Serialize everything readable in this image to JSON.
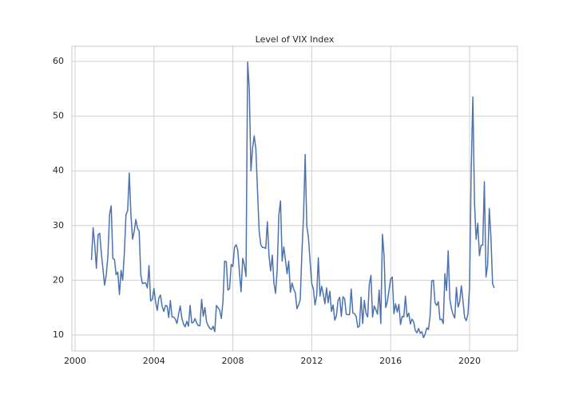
{
  "chart_data": {
    "type": "line",
    "title": "Level of VIX Index",
    "color": "#4c72b0",
    "grid": true,
    "xlim": [
      1999.84,
      2022.43
    ],
    "xticks": [
      2000,
      2004,
      2008,
      2012,
      2016,
      2020
    ],
    "ylim": [
      7.08,
      62.77
    ],
    "yticks": [
      10,
      20,
      30,
      40,
      50,
      60
    ],
    "x": [
      2000.833,
      2000.917,
      2001.0,
      2001.083,
      2001.167,
      2001.25,
      2001.333,
      2001.417,
      2001.5,
      2001.583,
      2001.667,
      2001.75,
      2001.833,
      2001.917,
      2002.0,
      2002.083,
      2002.167,
      2002.25,
      2002.333,
      2002.417,
      2002.5,
      2002.583,
      2002.667,
      2002.75,
      2002.833,
      2002.917,
      2003.0,
      2003.083,
      2003.167,
      2003.25,
      2003.333,
      2003.417,
      2003.5,
      2003.583,
      2003.667,
      2003.75,
      2003.833,
      2003.917,
      2004.0,
      2004.083,
      2004.167,
      2004.25,
      2004.333,
      2004.417,
      2004.5,
      2004.583,
      2004.667,
      2004.75,
      2004.833,
      2004.917,
      2005.0,
      2005.083,
      2005.167,
      2005.25,
      2005.333,
      2005.417,
      2005.5,
      2005.583,
      2005.667,
      2005.75,
      2005.833,
      2005.917,
      2006.0,
      2006.083,
      2006.167,
      2006.25,
      2006.333,
      2006.417,
      2006.5,
      2006.583,
      2006.667,
      2006.75,
      2006.833,
      2006.917,
      2007.0,
      2007.083,
      2007.167,
      2007.25,
      2007.333,
      2007.417,
      2007.5,
      2007.583,
      2007.667,
      2007.75,
      2007.833,
      2007.917,
      2008.0,
      2008.083,
      2008.167,
      2008.25,
      2008.333,
      2008.417,
      2008.5,
      2008.583,
      2008.667,
      2008.75,
      2008.833,
      2008.917,
      2009.0,
      2009.083,
      2009.167,
      2009.25,
      2009.333,
      2009.417,
      2009.5,
      2009.583,
      2009.667,
      2009.75,
      2009.833,
      2009.917,
      2010.0,
      2010.083,
      2010.167,
      2010.25,
      2010.333,
      2010.417,
      2010.5,
      2010.583,
      2010.667,
      2010.75,
      2010.833,
      2010.917,
      2011.0,
      2011.083,
      2011.167,
      2011.25,
      2011.333,
      2011.417,
      2011.5,
      2011.583,
      2011.667,
      2011.75,
      2011.833,
      2011.917,
      2012.0,
      2012.083,
      2012.167,
      2012.25,
      2012.333,
      2012.417,
      2012.5,
      2012.583,
      2012.667,
      2012.75,
      2012.833,
      2012.917,
      2013.0,
      2013.083,
      2013.167,
      2013.25,
      2013.333,
      2013.417,
      2013.5,
      2013.583,
      2013.667,
      2013.75,
      2013.833,
      2013.917,
      2014.0,
      2014.083,
      2014.167,
      2014.25,
      2014.333,
      2014.417,
      2014.5,
      2014.583,
      2014.667,
      2014.75,
      2014.833,
      2014.917,
      2015.0,
      2015.083,
      2015.167,
      2015.25,
      2015.333,
      2015.417,
      2015.5,
      2015.583,
      2015.667,
      2015.75,
      2015.833,
      2015.917,
      2016.0,
      2016.083,
      2016.167,
      2016.25,
      2016.333,
      2016.417,
      2016.5,
      2016.583,
      2016.667,
      2016.75,
      2016.833,
      2016.917,
      2017.0,
      2017.083,
      2017.167,
      2017.25,
      2017.333,
      2017.417,
      2017.5,
      2017.583,
      2017.667,
      2017.75,
      2017.833,
      2017.917,
      2018.0,
      2018.083,
      2018.167,
      2018.25,
      2018.333,
      2018.417,
      2018.5,
      2018.583,
      2018.667,
      2018.75,
      2018.833,
      2018.917,
      2019.0,
      2019.083,
      2019.167,
      2019.25,
      2019.333,
      2019.417,
      2019.5,
      2019.583,
      2019.667,
      2019.75,
      2019.833,
      2019.917,
      2020.0,
      2020.083,
      2020.167,
      2020.25,
      2020.333,
      2020.417,
      2020.5,
      2020.583,
      2020.667,
      2020.75,
      2020.833,
      2020.917,
      2021.0,
      2021.083,
      2021.167,
      2021.25
    ],
    "values": [
      23.7,
      29.6,
      26.5,
      22.2,
      28.3,
      28.6,
      25.0,
      22.0,
      19.1,
      21.0,
      24.5,
      32.0,
      33.6,
      24.0,
      23.8,
      21.0,
      21.5,
      17.4,
      21.8,
      20.0,
      25.0,
      32.0,
      32.7,
      39.6,
      32.0,
      27.5,
      29.0,
      31.1,
      29.5,
      29.0,
      21.0,
      19.4,
      19.5,
      19.5,
      18.6,
      22.7,
      16.2,
      16.5,
      18.5,
      16.1,
      14.5,
      16.8,
      17.3,
      15.2,
      14.3,
      15.4,
      15.3,
      13.2,
      16.3,
      13.3,
      13.3,
      12.9,
      12.1,
      13.8,
      15.3,
      13.0,
      12.0,
      11.5,
      12.5,
      11.6,
      15.4,
      12.2,
      12.3,
      13.0,
      12.2,
      11.7,
      11.7,
      16.5,
      13.4,
      15.0,
      12.4,
      11.7,
      11.2,
      11.0,
      11.6,
      10.6,
      15.4,
      15.0,
      14.5,
      13.0,
      16.2,
      23.5,
      23.4,
      18.2,
      18.5,
      22.9,
      22.5,
      26.0,
      26.5,
      25.5,
      21.5,
      17.9,
      24.0,
      22.8,
      20.7,
      59.9,
      55.0,
      40.0,
      44.1,
      46.4,
      44.0,
      36.5,
      29.0,
      26.5,
      26.0,
      26.0,
      25.8,
      30.7,
      24.5,
      21.7,
      24.6,
      19.5,
      17.6,
      22.0,
      32.0,
      34.5,
      23.5,
      26.1,
      23.7,
      21.2,
      23.5,
      17.8,
      19.5,
      18.4,
      17.7,
      14.8,
      15.5,
      16.5,
      25.0,
      31.6,
      43.0,
      29.9,
      27.8,
      23.4,
      19.4,
      18.4,
      15.5,
      17.2,
      24.1,
      17.1,
      18.9,
      17.5,
      15.7,
      18.6,
      15.9,
      18.0,
      14.3,
      15.5,
      12.7,
      13.5,
      16.3,
      16.9,
      13.4,
      17.0,
      16.6,
      13.8,
      13.7,
      13.7,
      18.4,
      14.0,
      13.9,
      13.4,
      11.4,
      11.6,
      16.9,
      12.1,
      16.3,
      14.0,
      13.3,
      19.2,
      20.9,
      13.3,
      15.3,
      14.6,
      13.8,
      18.2,
      12.1,
      28.4,
      24.4,
      15.0,
      16.1,
      18.2,
      20.2,
      20.6,
      13.9,
      15.7,
      14.2,
      15.6,
      11.9,
      13.4,
      13.3,
      17.1,
      13.3,
      14.0,
      12.0,
      12.9,
      12.4,
      10.8,
      10.4,
      11.2,
      10.3,
      10.6,
      9.5,
      10.2,
      11.3,
      11.0,
      13.5,
      19.9,
      20.0,
      15.9,
      15.4,
      16.1,
      12.8,
      12.9,
      12.1,
      21.2,
      18.1,
      25.4,
      16.6,
      14.8,
      13.7,
      13.1,
      18.7,
      15.1,
      16.1,
      19.0,
      16.2,
      13.2,
      12.6,
      13.8,
      18.8,
      40.1,
      53.5,
      34.2,
      27.5,
      30.4,
      24.5,
      26.4,
      26.4,
      38.0,
      20.6,
      22.8,
      33.1,
      27.9,
      19.4,
      18.6
    ]
  }
}
